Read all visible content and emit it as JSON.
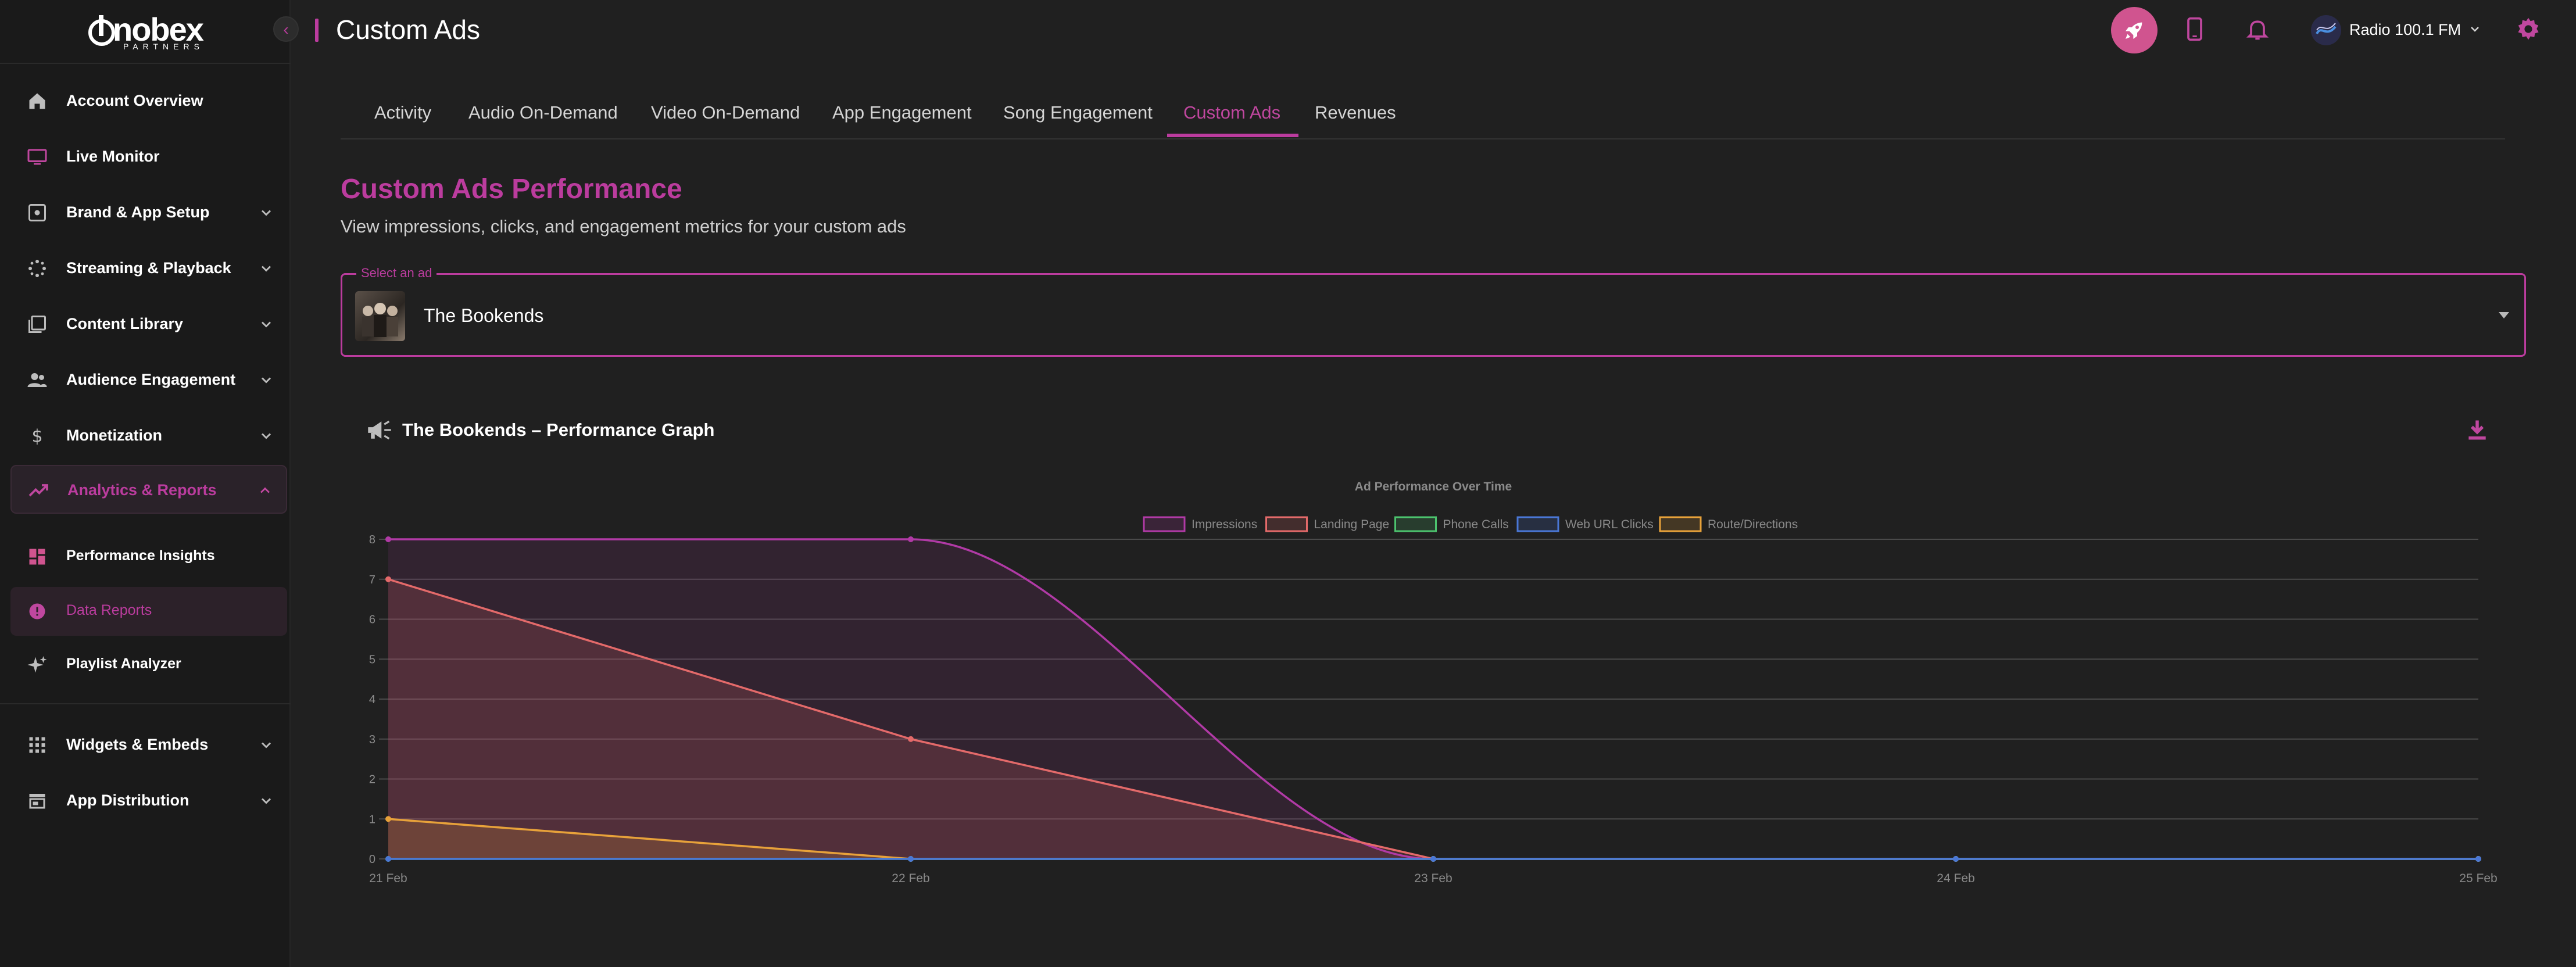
{
  "sidebar": {
    "logo_text": "nobex",
    "logo_sub": "PARTNERS",
    "items": [
      {
        "label": "Account Overview",
        "icon": "home-icon"
      },
      {
        "label": "Live Monitor",
        "icon": "monitor-icon"
      },
      {
        "label": "Brand & App Setup",
        "icon": "palette-icon"
      },
      {
        "label": "Streaming & Playback",
        "icon": "stream-icon"
      },
      {
        "label": "Content Library",
        "icon": "library-icon"
      },
      {
        "label": "Audience Engagement",
        "icon": "people-icon"
      },
      {
        "label": "Monetization",
        "icon": "dollar-icon"
      },
      {
        "label": "Analytics & Reports",
        "icon": "trending-icon"
      },
      {
        "label": "Performance Insights",
        "icon": "dashboard-icon"
      },
      {
        "label": "Data Reports",
        "icon": "report-icon"
      },
      {
        "label": "Playlist Analyzer",
        "icon": "sparkle-icon"
      },
      {
        "label": "Widgets & Embeds",
        "icon": "grid-icon"
      },
      {
        "label": "App Distribution",
        "icon": "store-icon"
      }
    ]
  },
  "header": {
    "title": "Custom Ads",
    "station_name": "Radio 100.1 FM"
  },
  "tabs": [
    {
      "label": "Activity"
    },
    {
      "label": "Audio On-Demand"
    },
    {
      "label": "Video On-Demand"
    },
    {
      "label": "App Engagement"
    },
    {
      "label": "Song Engagement"
    },
    {
      "label": "Custom Ads"
    },
    {
      "label": "Revenues"
    }
  ],
  "main": {
    "title": "Custom Ads Performance",
    "subtitle": "View impressions, clicks, and engagement metrics for your custom ads",
    "select_label": "Select an ad",
    "select_value": "The Bookends",
    "graph_title": "The Bookends – Performance Graph"
  },
  "colors": {
    "accent": "#bb3c9e",
    "impressions": "#b13aa6",
    "landing_page": "#e46a6a",
    "phone_calls": "#4cc36e",
    "web_url_clicks": "#4a77d6",
    "route_directions": "#e8a23a"
  },
  "chart_data": {
    "type": "area",
    "title": "Ad Performance Over Time",
    "xlabel": "",
    "ylabel": "",
    "categories": [
      "21 Feb",
      "22 Feb",
      "23 Feb",
      "24 Feb",
      "25 Feb"
    ],
    "ylim": [
      0,
      8
    ],
    "yticks": [
      "0",
      "1",
      "2",
      "3",
      "4",
      "5",
      "6",
      "7",
      "8"
    ],
    "grid": true,
    "legend": "top-center",
    "series": [
      {
        "name": "Impressions",
        "values": [
          8,
          8,
          0,
          0,
          0
        ],
        "color": "#b13aa6"
      },
      {
        "name": "Landing Page",
        "values": [
          7,
          3,
          0,
          0,
          0
        ],
        "color": "#e46a6a"
      },
      {
        "name": "Phone Calls",
        "values": [
          0,
          0,
          0,
          0,
          0
        ],
        "color": "#4cc36e"
      },
      {
        "name": "Web URL Clicks",
        "values": [
          0,
          0,
          0,
          0,
          0
        ],
        "color": "#4a77d6"
      },
      {
        "name": "Route/Directions",
        "values": [
          1,
          0,
          0,
          0,
          0
        ],
        "color": "#e8a23a"
      }
    ]
  }
}
